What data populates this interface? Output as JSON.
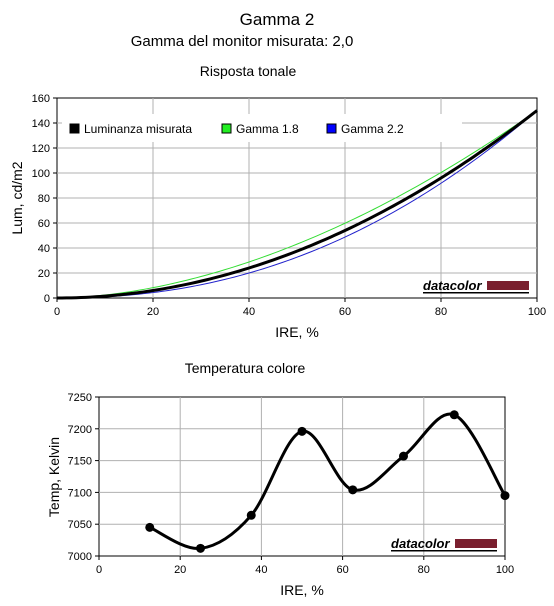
{
  "header": {
    "title": "Gamma 2",
    "subtitle": "Gamma del monitor misurata: 2,0"
  },
  "brand": {
    "logo_text": "datacolor",
    "logo_color": "#7a1f2e"
  },
  "chart_data": [
    {
      "type": "line",
      "title": "Risposta tonale",
      "xlabel": "IRE, %",
      "ylabel": "Lum, cd/m2",
      "xlim": [
        0,
        100
      ],
      "ylim": [
        0,
        160
      ],
      "xticks": [
        0,
        20,
        40,
        60,
        80,
        100
      ],
      "yticks": [
        0,
        20,
        40,
        60,
        80,
        100,
        120,
        140,
        160
      ],
      "grid": true,
      "legend_position": "top",
      "y_max_value": 150,
      "series": [
        {
          "name": "Luminanza misurata",
          "gamma": 2.0,
          "color": "#000000",
          "legend_color": "#000000",
          "line_width": 3
        },
        {
          "name": "Gamma 1.8",
          "gamma": 1.8,
          "color": "#33dd33",
          "legend_color": "#22ee22",
          "line_width": 1
        },
        {
          "name": "Gamma 2.2",
          "gamma": 2.2,
          "color": "#2222cc",
          "legend_color": "#0000ff",
          "line_width": 1
        }
      ]
    },
    {
      "type": "line",
      "title": "Temperatura colore",
      "xlabel": "IRE, %",
      "ylabel": "Temp, Kelvin",
      "xlim": [
        0,
        100
      ],
      "ylim": [
        7000,
        7250
      ],
      "xticks": [
        0,
        20,
        40,
        60,
        80,
        100
      ],
      "yticks": [
        7000,
        7050,
        7100,
        7150,
        7200,
        7250
      ],
      "grid": true,
      "smooth": true,
      "series": [
        {
          "color": "#000000",
          "points": [
            {
              "x": 12.5,
              "y": 7045
            },
            {
              "x": 25,
              "y": 7012
            },
            {
              "x": 37.5,
              "y": 7064
            },
            {
              "x": 50,
              "y": 7196
            },
            {
              "x": 62.5,
              "y": 7104
            },
            {
              "x": 75,
              "y": 7157
            },
            {
              "x": 87.5,
              "y": 7222
            },
            {
              "x": 100,
              "y": 7095
            }
          ]
        }
      ]
    }
  ]
}
